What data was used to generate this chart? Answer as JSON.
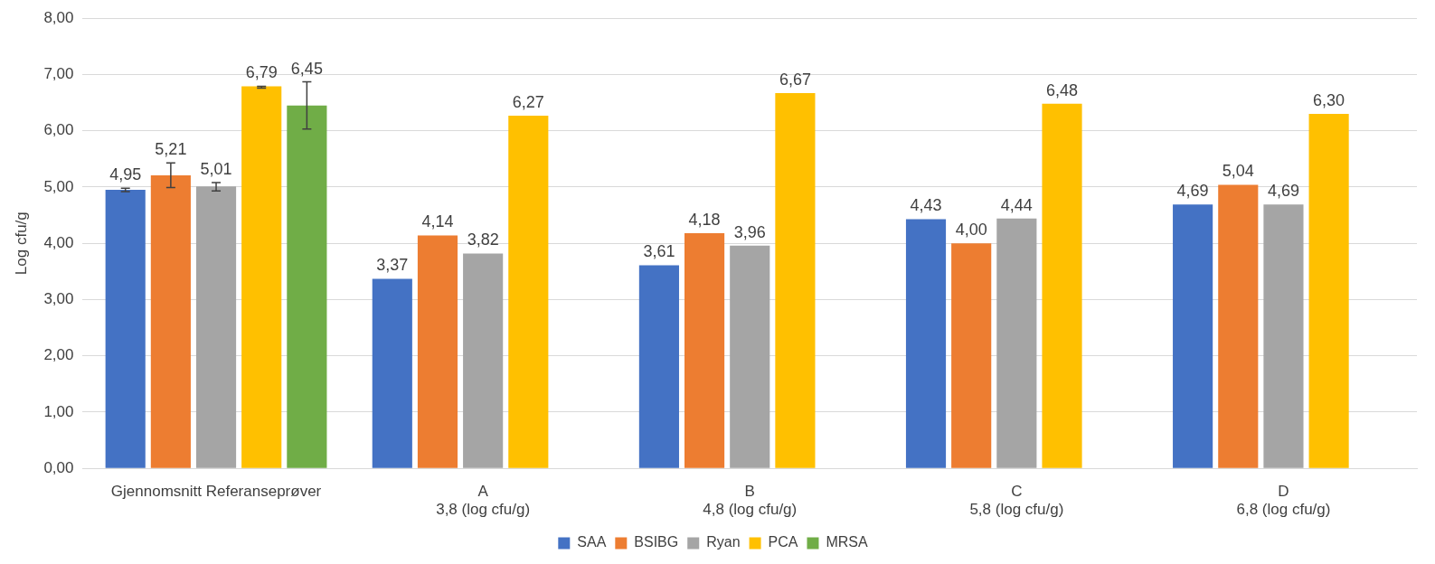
{
  "chart_data": {
    "type": "bar",
    "ylabel": "Log cfu/g",
    "categories": [
      "Gjennomsnitt Referanseprøver",
      "A\n3,8 (log cfu/g)",
      "B\n4,8 (log cfu/g)",
      "C\n5,8 (log cfu/g)",
      "D\n6,8 (log cfu/g)"
    ],
    "series": [
      {
        "name": "SAA",
        "color": "#4472c4",
        "values": [
          4.95,
          3.37,
          3.61,
          4.43,
          4.69
        ],
        "value_labels": [
          "4,95",
          "3,37",
          "3,61",
          "4,43",
          "4,69"
        ],
        "errors": [
          [
            4.92,
            4.98
          ],
          null,
          null,
          null,
          null
        ]
      },
      {
        "name": "BSIBG",
        "color": "#ed7d31",
        "values": [
          5.21,
          4.14,
          4.18,
          4.0,
          5.04
        ],
        "value_labels": [
          "5,21",
          "4,14",
          "4,18",
          "4,00",
          "5,04"
        ],
        "errors": [
          [
            4.99,
            5.43
          ],
          null,
          null,
          null,
          null
        ]
      },
      {
        "name": "Ryan",
        "color": "#a5a5a5",
        "values": [
          5.01,
          3.82,
          3.96,
          4.44,
          4.69
        ],
        "value_labels": [
          "5,01",
          "3,82",
          "3,96",
          "4,44",
          "4,69"
        ],
        "errors": [
          [
            4.93,
            5.08
          ],
          null,
          null,
          null,
          null
        ]
      },
      {
        "name": "PCA",
        "color": "#ffc000",
        "values": [
          6.79,
          6.27,
          6.67,
          6.48,
          6.3
        ],
        "value_labels": [
          "6,79",
          "6,27",
          "6,67",
          "6,48",
          "6,30"
        ],
        "errors": [
          [
            6.76,
            6.79
          ],
          null,
          null,
          null,
          null
        ]
      },
      {
        "name": "MRSA",
        "color": "#70ad47",
        "values": [
          6.45,
          null,
          null,
          null,
          null
        ],
        "value_labels": [
          "6,45",
          null,
          null,
          null,
          null
        ],
        "errors": [
          [
            6.03,
            6.87
          ],
          null,
          null,
          null,
          null
        ]
      }
    ],
    "ylim": [
      0,
      8
    ],
    "yticks": [
      {
        "value": 0,
        "label": "0,00"
      },
      {
        "value": 1,
        "label": "1,00"
      },
      {
        "value": 2,
        "label": "2,00"
      },
      {
        "value": 3,
        "label": "3,00"
      },
      {
        "value": 4,
        "label": "4,00"
      },
      {
        "value": 5,
        "label": "5,00"
      },
      {
        "value": 6,
        "label": "6,00"
      },
      {
        "value": 7,
        "label": "7,00"
      },
      {
        "value": 8,
        "label": "8,00"
      }
    ],
    "grid": "y",
    "legend": "bottom"
  }
}
